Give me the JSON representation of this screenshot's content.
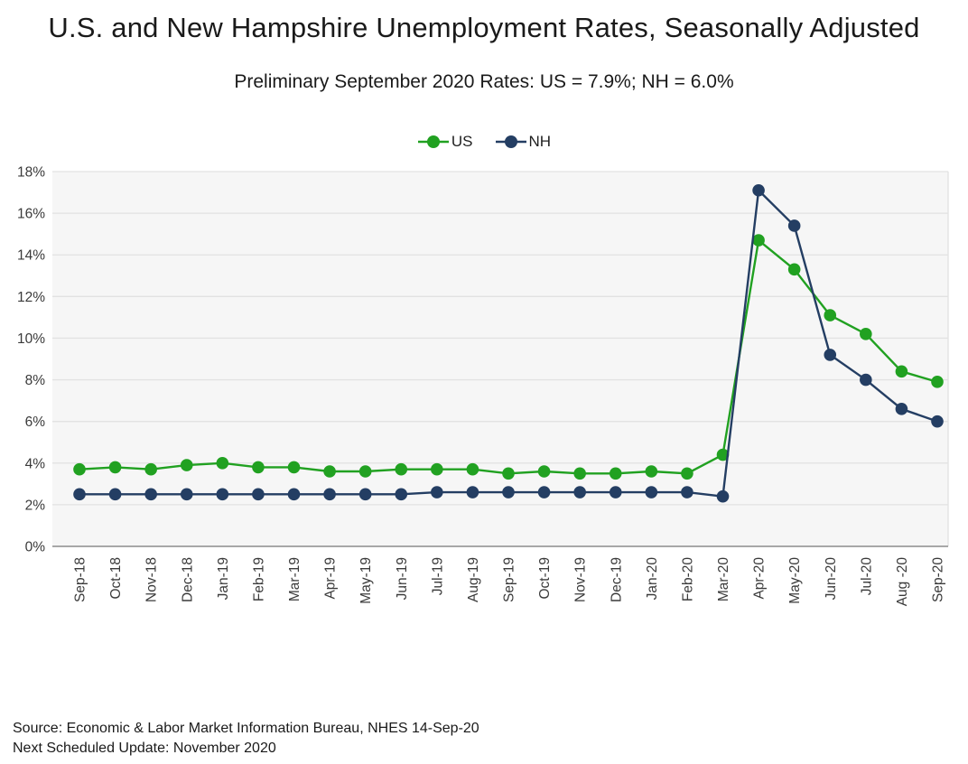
{
  "title": "U.S. and New Hampshire Unemployment Rates, Seasonally Adjusted",
  "subtitle": "Preliminary September 2020 Rates: US = 7.9%; NH = 6.0%",
  "footer": {
    "source": "Source: Economic & Labor Market Information Bureau, NHES 14-Sep-20",
    "next_update": "Next Scheduled Update: November 2020"
  },
  "chart_data": {
    "type": "line",
    "title": "U.S. and New Hampshire Unemployment Rates, Seasonally Adjusted",
    "subtitle": "Preliminary September 2020 Rates: US = 7.9%; NH = 6.0%",
    "categories": [
      "Sep-18",
      "Oct-18",
      "Nov-18",
      "Dec-18",
      "Jan-19",
      "Feb-19",
      "Mar-19",
      "Apr-19",
      "May-19",
      "Jun-19",
      "Jul-19",
      "Aug-19",
      "Sep-19",
      "Oct-19",
      "Nov-19",
      "Dec-19",
      "Jan-20",
      "Feb-20",
      "Mar-20",
      "Apr-20",
      "May-20",
      "Jun-20",
      "Jul-20",
      "Aug -20",
      "Sep-20"
    ],
    "series": [
      {
        "name": "US",
        "color": "#21A121",
        "values": [
          3.7,
          3.8,
          3.7,
          3.9,
          4.0,
          3.8,
          3.8,
          3.6,
          3.6,
          3.7,
          3.7,
          3.7,
          3.5,
          3.6,
          3.5,
          3.5,
          3.6,
          3.5,
          4.4,
          14.7,
          13.3,
          11.1,
          10.2,
          8.4,
          7.9
        ]
      },
      {
        "name": "NH",
        "color": "#243E63",
        "values": [
          2.5,
          2.5,
          2.5,
          2.5,
          2.5,
          2.5,
          2.5,
          2.5,
          2.5,
          2.5,
          2.6,
          2.6,
          2.6,
          2.6,
          2.6,
          2.6,
          2.6,
          2.6,
          2.4,
          17.1,
          15.4,
          9.2,
          8.0,
          6.6,
          6.0
        ]
      }
    ],
    "xlabel": "",
    "ylabel": "",
    "ylim": [
      0,
      18
    ],
    "ytick_step": 2,
    "ytick_labels": [
      "0%",
      "2%",
      "4%",
      "6%",
      "8%",
      "10%",
      "12%",
      "14%",
      "16%",
      "18%"
    ],
    "grid": true,
    "legend_position": "top",
    "plot_bg_color": "#F6F6F6",
    "gridline_color": "#E2E2E2",
    "axis_line_color": "#9C9C9C"
  }
}
